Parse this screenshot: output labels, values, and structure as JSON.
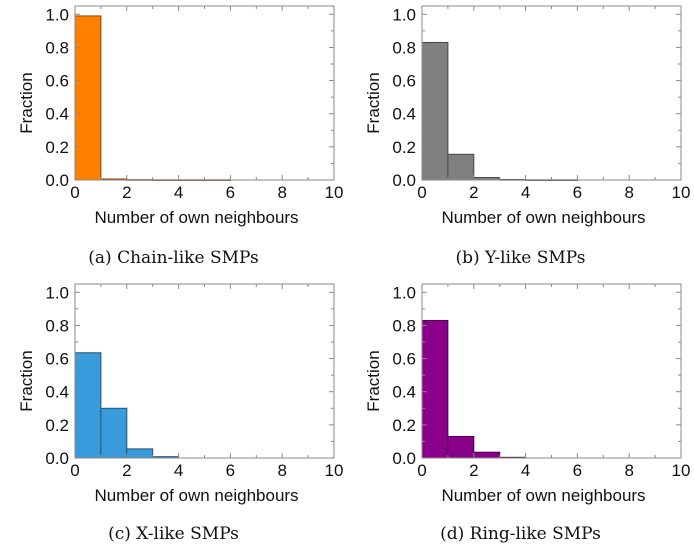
{
  "chart_data": [
    {
      "type": "bar",
      "xlabel": "Number of own neighbours",
      "ylabel": "Fraction",
      "xlim": [
        0,
        10
      ],
      "ylim": [
        0,
        1.05
      ],
      "xticks": [
        "0",
        "2",
        "4",
        "6",
        "8",
        "10"
      ],
      "yticks": [
        "0.0",
        "0.2",
        "0.4",
        "0.6",
        "0.8",
        "1.0"
      ],
      "bin_edges": [
        0,
        1,
        2,
        3,
        4,
        5,
        6
      ],
      "values": [
        0.99,
        0.006,
        0.002,
        0.001,
        0.001,
        0.001
      ],
      "color": "#FF7F00",
      "caption": "(a) Chain-like SMPs"
    },
    {
      "type": "bar",
      "xlabel": "Number of own neighbours",
      "ylabel": "Fraction",
      "xlim": [
        0,
        10
      ],
      "ylim": [
        0,
        1.05
      ],
      "xticks": [
        "0",
        "2",
        "4",
        "6",
        "8",
        "10"
      ],
      "yticks": [
        "0.0",
        "0.2",
        "0.4",
        "0.6",
        "0.8",
        "1.0"
      ],
      "bin_edges": [
        0,
        1,
        2,
        3,
        4,
        5,
        6
      ],
      "values": [
        0.83,
        0.155,
        0.015,
        0.003,
        0.001,
        0.001
      ],
      "color": "#808080",
      "caption": "(b) Y-like SMPs"
    },
    {
      "type": "bar",
      "xlabel": "Number of own neighbours",
      "ylabel": "Fraction",
      "xlim": [
        0,
        10
      ],
      "ylim": [
        0,
        1.05
      ],
      "xticks": [
        "0",
        "2",
        "4",
        "6",
        "8",
        "10"
      ],
      "yticks": [
        "0.0",
        "0.2",
        "0.4",
        "0.6",
        "0.8",
        "1.0"
      ],
      "bin_edges": [
        0,
        1,
        2,
        3,
        4
      ],
      "values": [
        0.635,
        0.3,
        0.055,
        0.008
      ],
      "color": "#3A9BDC",
      "caption": "(c) X-like SMPs"
    },
    {
      "type": "bar",
      "xlabel": "Number of own neighbours",
      "ylabel": "Fraction",
      "xlim": [
        0,
        10
      ],
      "ylim": [
        0,
        1.05
      ],
      "xticks": [
        "0",
        "2",
        "4",
        "6",
        "8",
        "10"
      ],
      "yticks": [
        "0.0",
        "0.2",
        "0.4",
        "0.6",
        "0.8",
        "1.0"
      ],
      "bin_edges": [
        0,
        1,
        2,
        3,
        4
      ],
      "values": [
        0.83,
        0.13,
        0.035,
        0.004
      ],
      "color": "#8B008B",
      "caption": "(d) Ring-like SMPs"
    }
  ]
}
